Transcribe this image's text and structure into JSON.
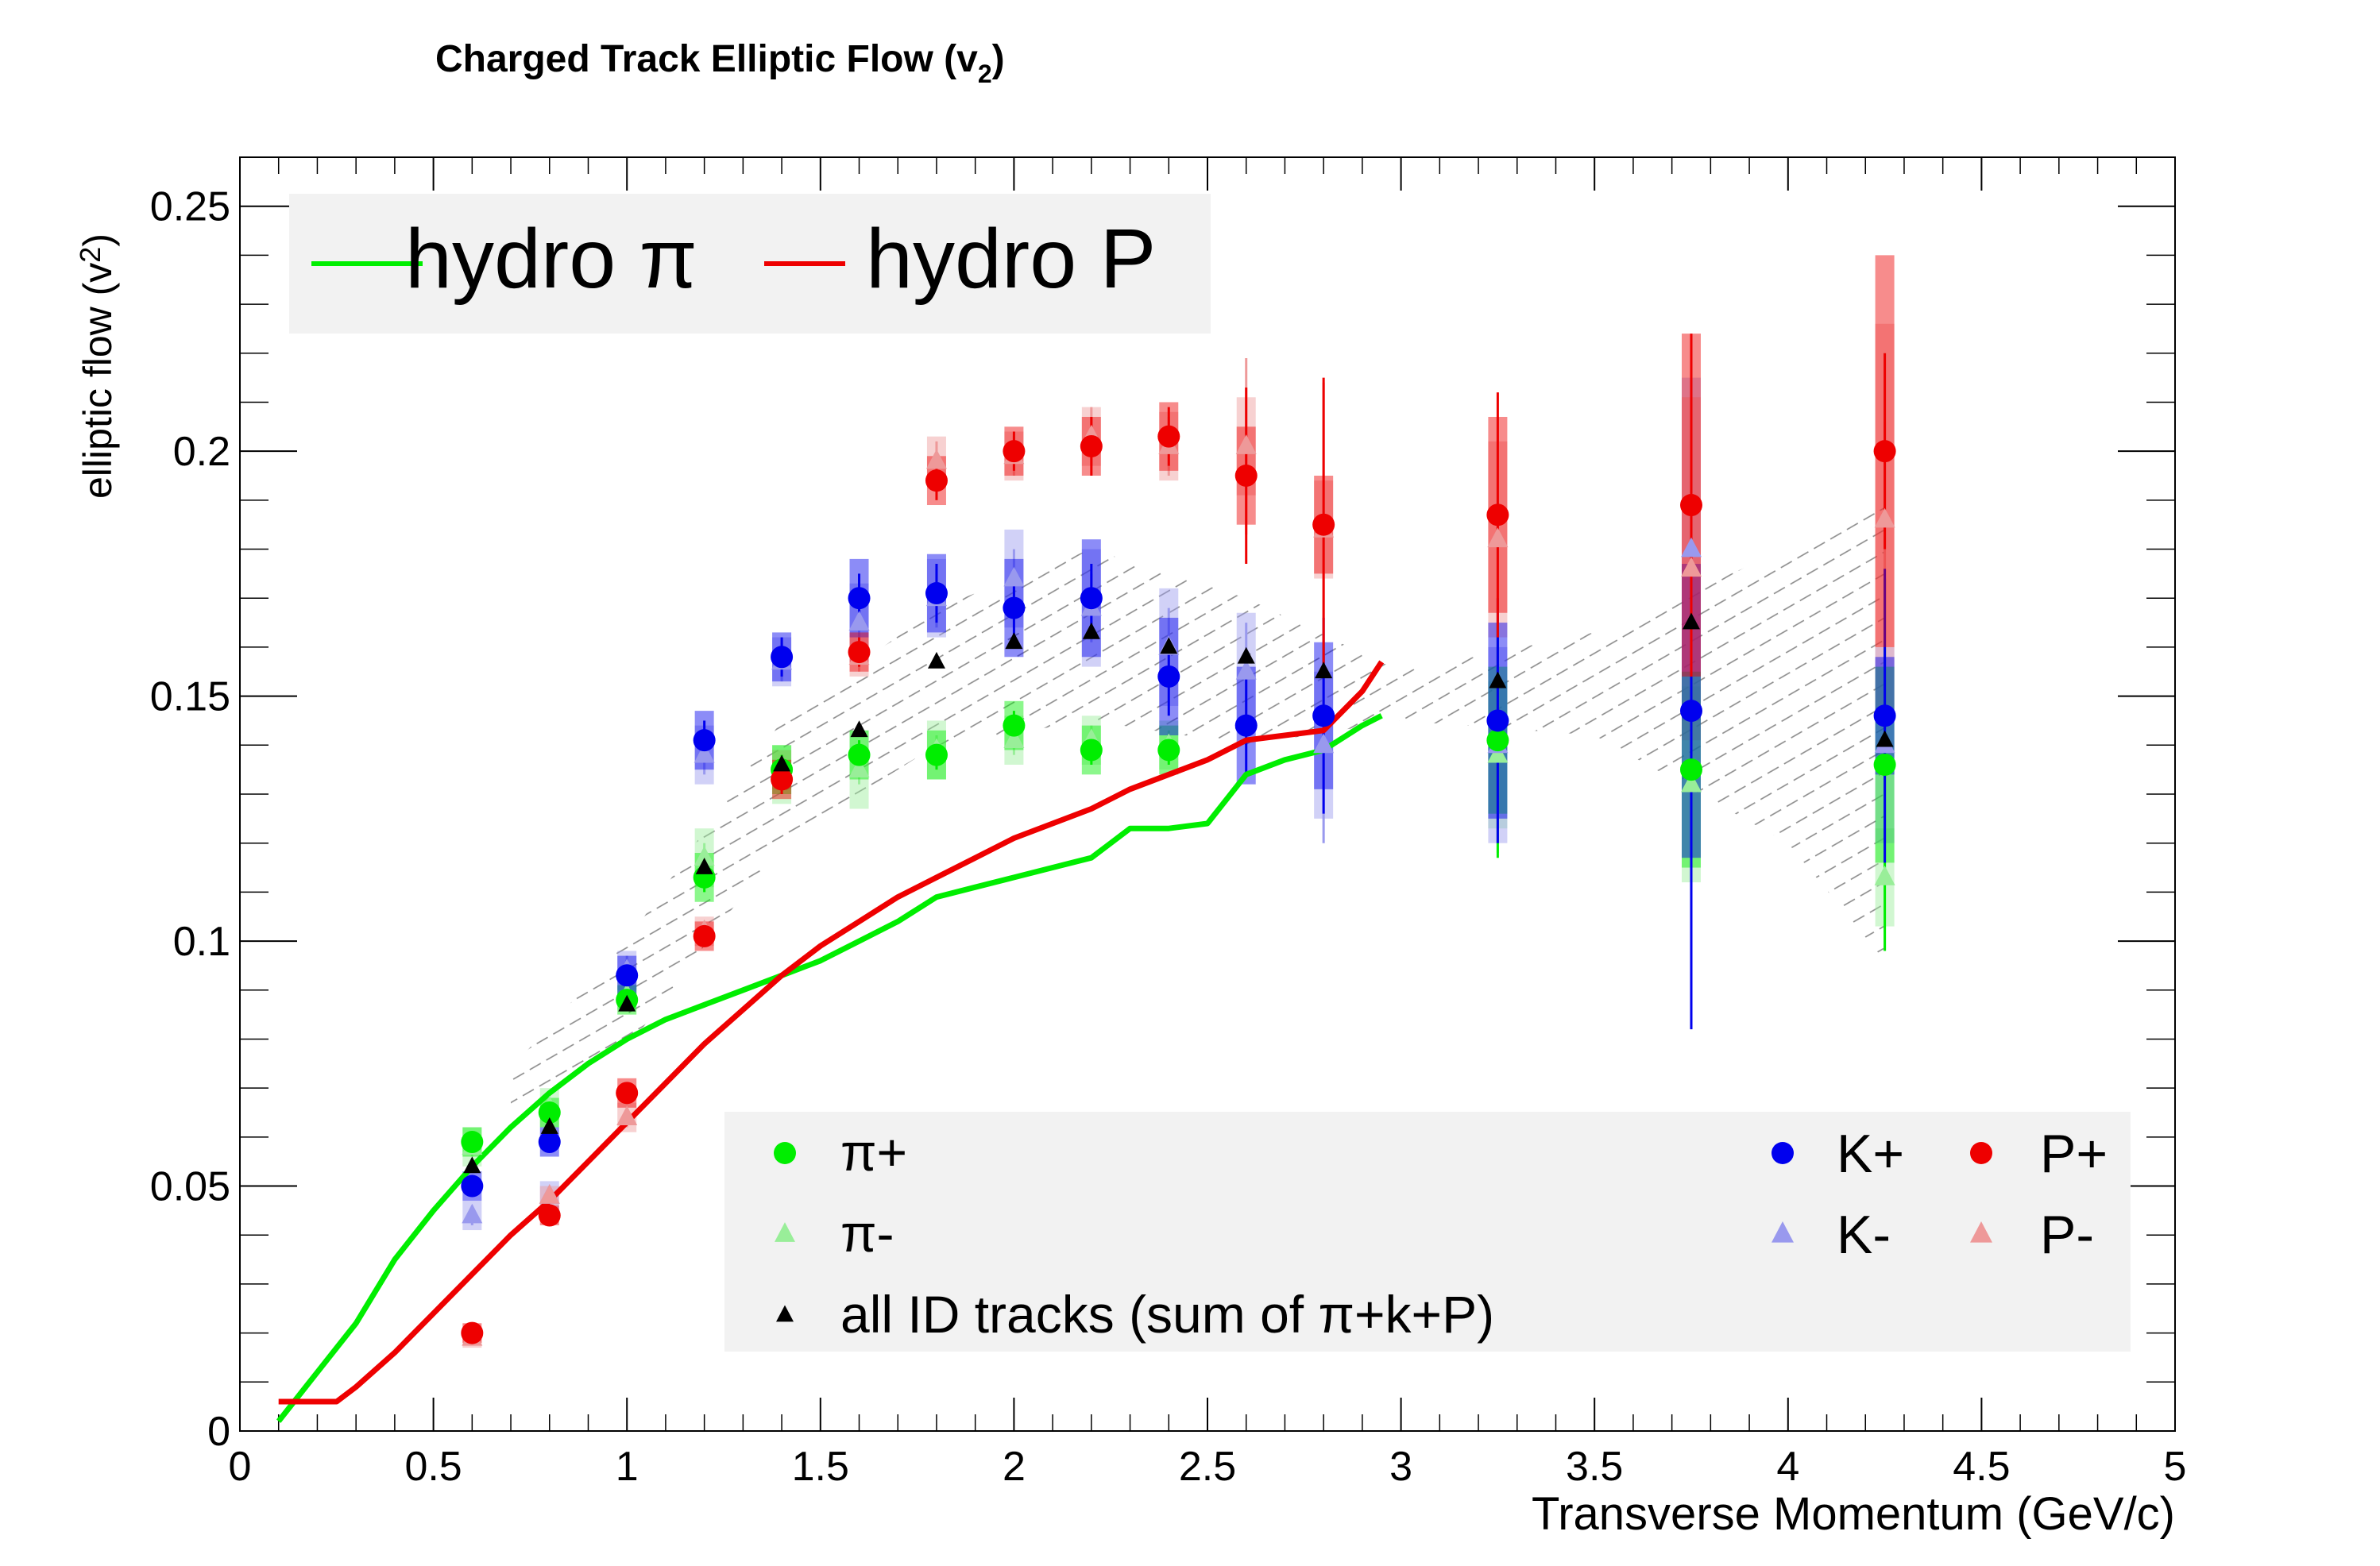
{
  "chart_data": {
    "type": "scatter",
    "title": "Charged Track Elliptic Flow (v",
    "title_sub": "2",
    "title_close": ")",
    "xlabel": "Transverse Momentum (GeV/c)",
    "ylabel": "elliptic flow (v",
    "ylabel_sub": "2",
    "ylabel_close": ")",
    "xlim": [
      0,
      5
    ],
    "ylim": [
      0,
      0.26
    ],
    "x_ticks": [
      "0",
      "0.5",
      "1",
      "1.5",
      "2",
      "2.5",
      "3",
      "3.5",
      "4",
      "4.5",
      "5"
    ],
    "y_ticks": [
      "0",
      "0.05",
      "0.1",
      "0.15",
      "0.2",
      "0.25"
    ],
    "grid": false,
    "legend_top": [
      {
        "name": "hydro π",
        "color": "#00ee00"
      },
      {
        "name": "hydro P",
        "color": "#ee0000"
      }
    ],
    "legend_bottom": {
      "left": [
        {
          "name": "π+",
          "color": "#00ee00",
          "marker": "circle"
        },
        {
          "name": "π-",
          "color": "#99ee99",
          "marker": "triangle"
        },
        {
          "name": "all ID tracks (sum of π+k+P)",
          "color": "#000000",
          "marker": "triangle"
        }
      ],
      "right": [
        {
          "name": "K+",
          "color": "#0000ee",
          "marker": "circle"
        },
        {
          "name": "P+",
          "color": "#ee0000",
          "marker": "circle"
        },
        {
          "name": "K-",
          "color": "#9999ee",
          "marker": "triangle"
        },
        {
          "name": "P-",
          "color": "#ee9999",
          "marker": "triangle"
        }
      ]
    },
    "curves": [
      {
        "name": "hydro π",
        "color": "#00ee00",
        "x": [
          0.1,
          0.2,
          0.3,
          0.4,
          0.5,
          0.6,
          0.7,
          0.8,
          0.9,
          1.0,
          1.1,
          1.2,
          1.3,
          1.4,
          1.5,
          1.6,
          1.7,
          1.8,
          1.9,
          2.0,
          2.1,
          2.2,
          2.3,
          2.4,
          2.5,
          2.6,
          2.7,
          2.8,
          2.9,
          2.95
        ],
        "y": [
          0.002,
          0.012,
          0.022,
          0.035,
          0.045,
          0.054,
          0.062,
          0.069,
          0.075,
          0.08,
          0.084,
          0.087,
          0.09,
          0.093,
          0.096,
          0.1,
          0.104,
          0.109,
          0.111,
          0.113,
          0.115,
          0.117,
          0.123,
          0.123,
          0.124,
          0.134,
          0.137,
          0.139,
          0.144,
          0.146
        ]
      },
      {
        "name": "hydro P",
        "color": "#ee0000",
        "x": [
          0.1,
          0.25,
          0.3,
          0.4,
          0.5,
          0.6,
          0.7,
          0.8,
          0.9,
          1.0,
          1.1,
          1.2,
          1.3,
          1.4,
          1.5,
          1.6,
          1.7,
          1.8,
          1.9,
          2.0,
          2.1,
          2.2,
          2.3,
          2.4,
          2.5,
          2.6,
          2.7,
          2.8,
          2.9,
          2.95
        ],
        "y": [
          0.006,
          0.006,
          0.009,
          0.016,
          0.024,
          0.032,
          0.04,
          0.047,
          0.055,
          0.063,
          0.071,
          0.079,
          0.086,
          0.093,
          0.099,
          0.104,
          0.109,
          0.113,
          0.117,
          0.121,
          0.124,
          0.127,
          0.131,
          0.134,
          0.137,
          0.141,
          0.142,
          0.143,
          0.151,
          0.157
        ]
      }
    ],
    "band": {
      "x": [
        0.7,
        1.0,
        1.4,
        1.8,
        2.2,
        2.6,
        3.0,
        3.5,
        4.0,
        4.25
      ],
      "upper": [
        0.074,
        0.1,
        0.145,
        0.168,
        0.18,
        0.17,
        0.155,
        0.163,
        0.18,
        0.19
      ],
      "lower": [
        0.064,
        0.078,
        0.12,
        0.14,
        0.145,
        0.14,
        0.145,
        0.142,
        0.12,
        0.096
      ]
    },
    "series": [
      {
        "name": "π+",
        "color": "#00ee00",
        "marker": "circle",
        "x": [
          0.6,
          0.8,
          1.0,
          1.2,
          1.4,
          1.6,
          1.8,
          2.0,
          2.2,
          2.4,
          3.25,
          3.75,
          4.25
        ],
        "y": [
          0.059,
          0.065,
          0.088,
          0.113,
          0.135,
          0.138,
          0.138,
          0.144,
          0.139,
          0.139,
          0.141,
          0.135,
          0.136
        ],
        "sys": [
          0.003,
          0.003,
          0.003,
          0.005,
          0.005,
          0.005,
          0.005,
          0.005,
          0.005,
          0.005,
          0.015,
          0.02,
          0.02
        ],
        "stat": [
          0.002,
          0.002,
          0.002,
          0.003,
          0.003,
          0.003,
          0.003,
          0.003,
          0.003,
          0.003,
          0.024,
          0.037,
          0.038
        ]
      },
      {
        "name": "π-",
        "color": "#99ee99",
        "marker": "triangle",
        "x": [
          0.6,
          0.8,
          1.0,
          1.2,
          1.4,
          1.6,
          1.8,
          2.0,
          2.2,
          2.4,
          3.25,
          3.75,
          4.25
        ],
        "y": [
          0.058,
          0.066,
          0.089,
          0.117,
          0.134,
          0.135,
          0.139,
          0.141,
          0.141,
          0.14,
          0.138,
          0.132,
          0.113
        ],
        "sys": [
          0.004,
          0.004,
          0.003,
          0.006,
          0.006,
          0.008,
          0.006,
          0.005,
          0.005,
          0.005,
          0.015,
          0.02,
          0.01
        ],
        "stat": [
          0.002,
          0.002,
          0.002,
          0.003,
          0.003,
          0.003,
          0.003,
          0.003,
          0.003,
          0.003,
          0.02,
          0.03,
          0.015
        ]
      },
      {
        "name": "K+",
        "color": "#0000ee",
        "marker": "circle",
        "x": [
          0.6,
          0.8,
          1.0,
          1.2,
          1.4,
          1.6,
          1.8,
          2.0,
          2.2,
          2.4,
          2.6,
          2.8,
          3.25,
          3.75,
          4.25
        ],
        "y": [
          0.05,
          0.059,
          0.093,
          0.141,
          0.158,
          0.17,
          0.171,
          0.168,
          0.17,
          0.154,
          0.144,
          0.146,
          0.145,
          0.147,
          0.146
        ],
        "sys": [
          0.003,
          0.003,
          0.004,
          0.006,
          0.005,
          0.008,
          0.008,
          0.01,
          0.012,
          0.012,
          0.012,
          0.015,
          0.02,
          0.03,
          0.012
        ],
        "stat": [
          0.002,
          0.002,
          0.003,
          0.004,
          0.004,
          0.005,
          0.006,
          0.006,
          0.007,
          0.008,
          0.01,
          0.02,
          0.025,
          0.065,
          0.03
        ]
      },
      {
        "name": "K-",
        "color": "#9999ee",
        "marker": "triangle",
        "x": [
          0.6,
          0.8,
          1.0,
          1.2,
          1.4,
          1.6,
          1.8,
          2.0,
          2.2,
          2.4,
          2.6,
          2.8,
          3.25,
          3.75,
          4.25
        ],
        "y": [
          0.044,
          0.048,
          0.094,
          0.138,
          0.157,
          0.165,
          0.17,
          0.174,
          0.168,
          0.16,
          0.155,
          0.14,
          0.14,
          0.18,
          0.14
        ],
        "sys": [
          0.003,
          0.003,
          0.004,
          0.006,
          0.005,
          0.008,
          0.008,
          0.01,
          0.012,
          0.012,
          0.012,
          0.015,
          0.02,
          0.035,
          0.02
        ],
        "stat": [
          0.002,
          0.002,
          0.003,
          0.004,
          0.004,
          0.005,
          0.006,
          0.006,
          0.007,
          0.008,
          0.01,
          0.02,
          0.02,
          0.04,
          0.02
        ]
      },
      {
        "name": "P+",
        "color": "#ee0000",
        "marker": "circle",
        "x": [
          0.6,
          0.8,
          1.0,
          1.2,
          1.4,
          1.6,
          1.8,
          2.0,
          2.2,
          2.4,
          2.6,
          2.8,
          3.25,
          3.75,
          4.25
        ],
        "y": [
          0.02,
          0.044,
          0.069,
          0.101,
          0.133,
          0.159,
          0.194,
          0.2,
          0.201,
          0.203,
          0.195,
          0.185,
          0.187,
          0.189,
          0.2
        ],
        "sys": [
          0.002,
          0.002,
          0.003,
          0.003,
          0.004,
          0.004,
          0.005,
          0.005,
          0.006,
          0.007,
          0.01,
          0.01,
          0.02,
          0.035,
          0.04
        ],
        "stat": [
          0.001,
          0.001,
          0.002,
          0.002,
          0.003,
          0.003,
          0.004,
          0.004,
          0.006,
          0.006,
          0.018,
          0.03,
          0.025,
          0.035,
          0.02
        ]
      },
      {
        "name": "P-",
        "color": "#ee9999",
        "marker": "triangle",
        "x": [
          0.6,
          0.8,
          1.0,
          1.2,
          1.4,
          1.6,
          1.8,
          2.0,
          2.2,
          2.4,
          2.6,
          2.8,
          3.25,
          3.75,
          4.25
        ],
        "y": [
          0.019,
          0.048,
          0.064,
          0.102,
          0.135,
          0.158,
          0.198,
          0.199,
          0.203,
          0.201,
          0.201,
          0.184,
          0.182,
          0.176,
          0.186
        ],
        "sys": [
          0.002,
          0.002,
          0.003,
          0.003,
          0.004,
          0.004,
          0.005,
          0.005,
          0.006,
          0.007,
          0.01,
          0.01,
          0.02,
          0.035,
          0.04
        ],
        "stat": [
          0.001,
          0.001,
          0.002,
          0.002,
          0.003,
          0.003,
          0.004,
          0.004,
          0.006,
          0.006,
          0.018,
          0.03,
          0.025,
          0.035,
          0.02
        ]
      },
      {
        "name": "all ID tracks (sum of π+k+P)",
        "color": "#000000",
        "marker": "triangle",
        "x": [
          0.6,
          0.8,
          1.0,
          1.2,
          1.4,
          1.6,
          1.8,
          2.0,
          2.2,
          2.4,
          2.6,
          2.8,
          3.25,
          3.75,
          4.25
        ],
        "y": [
          0.054,
          0.062,
          0.087,
          0.115,
          0.136,
          0.143,
          0.157,
          0.161,
          0.163,
          0.16,
          0.158,
          0.155,
          0.153,
          0.165,
          0.141
        ],
        "sys": [
          0,
          0,
          0,
          0,
          0,
          0,
          0,
          0,
          0,
          0,
          0,
          0,
          0,
          0,
          0
        ],
        "stat": [
          0,
          0,
          0,
          0,
          0,
          0,
          0,
          0,
          0,
          0,
          0,
          0,
          0,
          0,
          0
        ]
      }
    ]
  }
}
